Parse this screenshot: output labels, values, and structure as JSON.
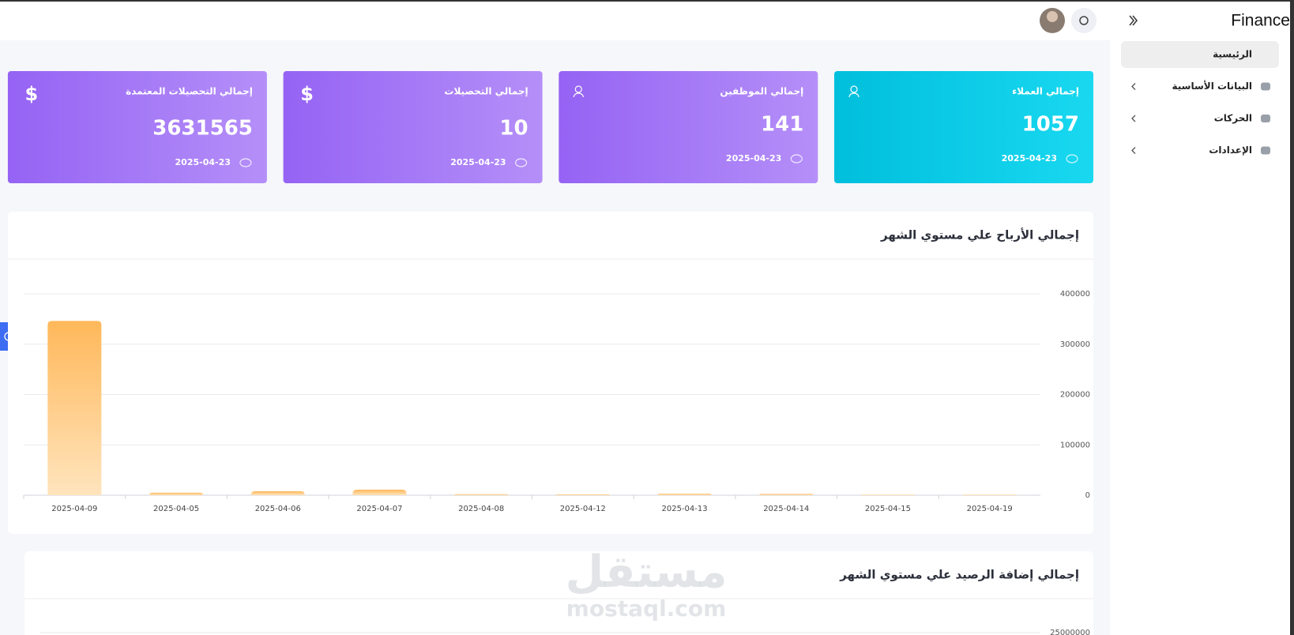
{
  "sidebar": {
    "title": "Finance",
    "nav": [
      "الرئيسية",
      "البيانات الأساسية",
      "الحركات",
      "الإعدادات"
    ]
  },
  "cards": [
    {
      "title": "إجمالي العملاء",
      "value": 1057,
      "date": "2025-04-23"
    },
    {
      "title": "إجمالي الموظفين",
      "value": 141,
      "date": "2025-04-23"
    },
    {
      "title": "إجمالي التحصيلات",
      "value": 10,
      "date": "2025-04-23",
      "icon": "$"
    },
    {
      "title": "إجمالي التحصيلات المعتمدة",
      "value": 3631565,
      "date": "2025-04-23",
      "icon": "$"
    }
  ],
  "chart_data": [
    {
      "type": "bar",
      "title": "إجمالي الأرباح علي مستوي الشهر",
      "categories": [
        "2025-04-09",
        "2025-04-05",
        "2025-04-06",
        "2025-04-07",
        "2025-04-08",
        "2025-04-12",
        "2025-04-13",
        "2025-04-14",
        "2025-04-15",
        "2025-04-19"
      ],
      "values": [
        346000,
        5000,
        8000,
        11000,
        2000,
        1500,
        3000,
        2500,
        1000,
        1000
      ],
      "color": "#ffb85a",
      "ylim": [
        0,
        400000
      ],
      "yticks": [
        0,
        100000,
        200000,
        300000,
        400000
      ],
      "grid": true
    },
    {
      "type": "bar",
      "title": "إجمالي إضافة الرصيد علي مستوي الشهر",
      "yticks": [
        25000000
      ]
    }
  ],
  "watermark": {
    "arabic": "مستقل",
    "latin": "mostaql.com"
  }
}
